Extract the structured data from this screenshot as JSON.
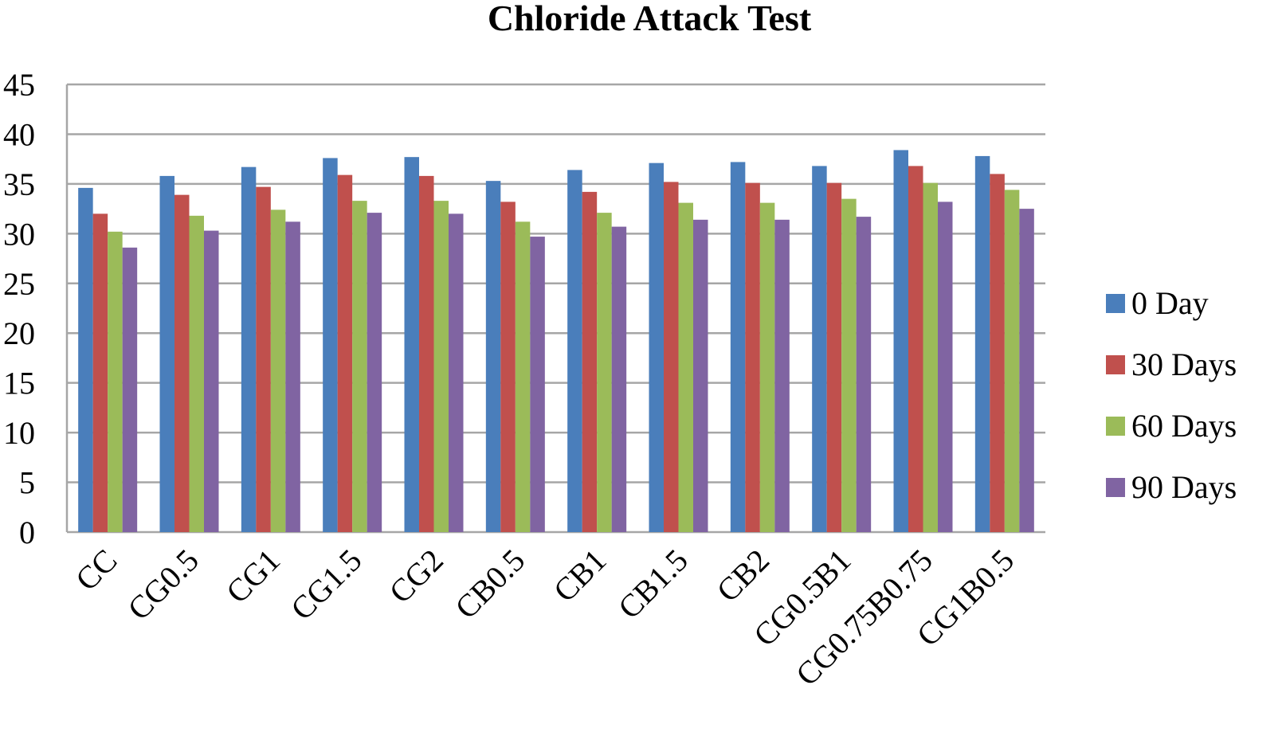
{
  "chart_data": {
    "type": "bar",
    "title": "Chloride Attack Test",
    "xlabel": "",
    "ylabel": "",
    "ylim": [
      0,
      45
    ],
    "yticks": [
      0,
      5,
      10,
      15,
      20,
      25,
      30,
      35,
      40,
      45
    ],
    "grid": true,
    "legend_position": "right",
    "categories": [
      "CC",
      "CG0.5",
      "CG1",
      "CG1.5",
      "CG2",
      "CB0.5",
      "CB1",
      "CB1.5",
      "CB2",
      "CG0.5B1",
      "CG0.75B0.75",
      "CG1B0.5"
    ],
    "series": [
      {
        "name": "0 Day",
        "color": "#4a7ebb",
        "values": [
          34.6,
          35.8,
          36.7,
          37.6,
          37.7,
          35.3,
          36.4,
          37.1,
          37.2,
          36.8,
          38.4,
          37.8
        ]
      },
      {
        "name": "30 Days",
        "color": "#c0504d",
        "values": [
          32.0,
          33.9,
          34.7,
          35.9,
          35.8,
          33.2,
          34.2,
          35.2,
          35.1,
          35.1,
          36.8,
          36.0
        ]
      },
      {
        "name": "60 Days",
        "color": "#9bbb59",
        "values": [
          30.2,
          31.8,
          32.4,
          33.3,
          33.3,
          31.2,
          32.1,
          33.1,
          33.1,
          33.5,
          35.1,
          34.4
        ]
      },
      {
        "name": "90 Days",
        "color": "#8064a2",
        "values": [
          28.6,
          30.3,
          31.2,
          32.1,
          32.0,
          29.7,
          30.7,
          31.4,
          31.4,
          31.7,
          33.2,
          32.5
        ]
      }
    ]
  }
}
